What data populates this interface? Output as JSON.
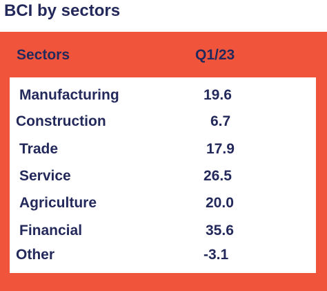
{
  "title": "BCI by sectors",
  "table": {
    "header": {
      "sector": "Sectors",
      "period": "Q1/23"
    }
  },
  "colors": {
    "panel": "#f0543a",
    "text": "#24295c",
    "inner": "#ffffff"
  },
  "chart_data": {
    "type": "table",
    "title": "BCI by sectors",
    "columns": [
      "Sectors",
      "Q1/23"
    ],
    "rows": [
      {
        "sector": "Manufacturing",
        "value": "19.6"
      },
      {
        "sector": "Construction",
        "value": "6.7"
      },
      {
        "sector": "Trade",
        "value": "17.9"
      },
      {
        "sector": "Service",
        "value": "26.5"
      },
      {
        "sector": "Agriculture",
        "value": "20.0"
      },
      {
        "sector": "Financial",
        "value": "35.6"
      },
      {
        "sector": "Other",
        "value": "-3.1"
      }
    ]
  }
}
